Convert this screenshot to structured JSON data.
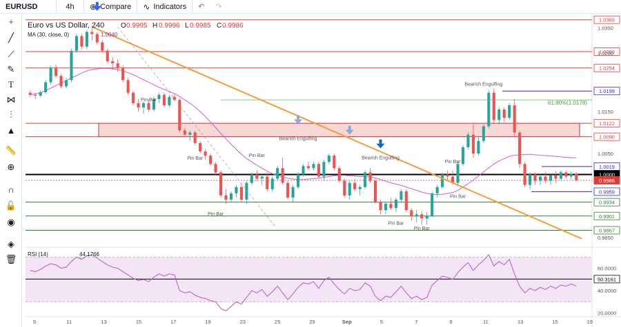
{
  "topbar": {
    "symbol": "EURUSD",
    "interval": "4h",
    "compare_label": "Compare",
    "indicators_label": "Indicators"
  },
  "toolbar": {
    "icons": [
      "crosshair-icon",
      "trend-line-icon",
      "brush-icon",
      "pen-icon",
      "text-icon",
      "pattern-icon",
      "measure-tool-icon",
      "arrow-up-icon",
      "ruler-icon",
      "zoom-icon",
      "magnet-icon",
      "lock-icon",
      "eye-icon",
      "layers-icon",
      "trash-icon"
    ]
  },
  "chart_data": {
    "type": "candlestick",
    "title": "Euro vs US Dollar, 240",
    "ohlc": {
      "o_label": "O",
      "o": "0.9995",
      "h_label": "H",
      "h": "0.9996",
      "l_label": "L",
      "l": "0.9985",
      "c_label": "C",
      "c": "0.9986"
    },
    "ma_legend": {
      "label": "MA (30, close, 0)",
      "value": "1.0040"
    },
    "rsi_legend": {
      "label": "RSI (14)",
      "value": "44.1766"
    },
    "y_axis": {
      "ticks": [
        "1.0350",
        "1.0290",
        "1.0150",
        "1.0050",
        "0.9850"
      ],
      "range": [
        0.983,
        1.038
      ]
    },
    "rsi_axis": {
      "ticks": [
        "60.0000",
        "40.0000",
        "20.0000"
      ],
      "range": [
        18,
        77
      ]
    },
    "x_axis": {
      "ticks": [
        "9",
        "11",
        "13",
        "15",
        "17",
        "19",
        "23",
        "25",
        "29",
        "Sep",
        "5",
        "7",
        "9",
        "11",
        "13",
        "15",
        "19"
      ]
    },
    "levels": [
      {
        "value": 1.0369,
        "label": "1.0369",
        "color": "#e53935",
        "kind": "red"
      },
      {
        "value": 1.0293,
        "label": "1.0293",
        "color": "#e53935",
        "kind": "red"
      },
      {
        "value": 1.0254,
        "label": "1.0254",
        "color": "#e53935",
        "kind": "red"
      },
      {
        "value": 1.0199,
        "label": "1.0199",
        "color": "#2a2ad4",
        "kind": "blue"
      },
      {
        "value": 1.0122,
        "label": "1.0122",
        "color": "#e53935",
        "kind": "red"
      },
      {
        "value": 1.009,
        "label": "1.0090",
        "color": "#e53935",
        "kind": "red"
      },
      {
        "value": 1.0019,
        "label": "1.0019",
        "color": "#2a2ad4",
        "kind": "blue"
      },
      {
        "value": 1.0,
        "label": "1.0000",
        "color": "#000000",
        "kind": "black"
      },
      {
        "value": 0.9986,
        "label": "0.9986",
        "color": "#e53935",
        "kind": "price"
      },
      {
        "value": 0.9959,
        "label": "0.9959",
        "color": "#2a2ad4",
        "kind": "blue"
      },
      {
        "value": 0.9934,
        "label": "0.9934",
        "color": "#2e7d32",
        "kind": "green"
      },
      {
        "value": 0.9901,
        "label": "0.9901",
        "color": "#2e7d32",
        "kind": "green"
      },
      {
        "value": 0.9867,
        "label": "0.9867",
        "color": "#2e7d32",
        "kind": "green"
      }
    ],
    "rsi_level": {
      "value": 50.3161,
      "label": "50.3161"
    },
    "fib_label": "61.80%(1.0178)",
    "fib_level": 1.0178,
    "annotations": [
      {
        "text": "Pin Bar",
        "x": 23,
        "v": 1.0175
      },
      {
        "text": "Bearish Engulfing",
        "x": 52,
        "v": 1.0082
      },
      {
        "text": "Pin Bar",
        "x": 44,
        "v": 1.0042
      },
      {
        "text": "Pin Bar",
        "x": 32,
        "v": 1.0035
      },
      {
        "text": "Pin Bar",
        "x": 36,
        "v": 0.9902
      },
      {
        "text": "Bearish Engulfing",
        "x": 68,
        "v": 1.0036
      },
      {
        "text": "Pin Bar",
        "x": 82,
        "v": 1.0027
      },
      {
        "text": "Pin Bar",
        "x": 83,
        "v": 0.9944
      },
      {
        "text": "Pin Bar",
        "x": 71,
        "v": 0.988
      },
      {
        "text": "Pin Bar",
        "x": 76,
        "v": 0.9868
      },
      {
        "text": "Bearish Engulfing",
        "x": 88,
        "v": 1.0212
      }
    ],
    "arrows": [
      {
        "x": 13,
        "v": 1.0395,
        "color": "#2962ff"
      },
      {
        "x": 52,
        "v": 1.0125,
        "color": "#8fa8d8"
      },
      {
        "x": 62,
        "v": 1.01,
        "color": "#8fa8d8"
      },
      {
        "x": 68,
        "v": 1.0067,
        "color": "#1565c0"
      }
    ],
    "candles": [
      [
        1.0195,
        1.02,
        1.0185,
        1.019
      ],
      [
        1.019,
        1.0195,
        1.018,
        1.0188
      ],
      [
        1.0188,
        1.02,
        1.0185,
        1.0196
      ],
      [
        1.0196,
        1.0225,
        1.0192,
        1.022
      ],
      [
        1.022,
        1.026,
        1.0215,
        1.0255
      ],
      [
        1.0255,
        1.0262,
        1.023,
        1.0235
      ],
      [
        1.0235,
        1.024,
        1.0205,
        1.021
      ],
      [
        1.021,
        1.023,
        1.0205,
        1.0225
      ],
      [
        1.0225,
        1.03,
        1.022,
        1.0295
      ],
      [
        1.0295,
        1.0335,
        1.029,
        1.033
      ],
      [
        1.033,
        1.0335,
        1.03,
        1.0305
      ],
      [
        1.0305,
        1.0345,
        1.03,
        1.034
      ],
      [
        1.034,
        1.0352,
        1.032,
        1.0335
      ],
      [
        1.0335,
        1.034,
        1.031,
        1.0315
      ],
      [
        1.0315,
        1.032,
        1.029,
        1.0295
      ],
      [
        1.0295,
        1.03,
        1.0265,
        1.027
      ],
      [
        1.027,
        1.028,
        1.025,
        1.0265
      ],
      [
        1.0265,
        1.0275,
        1.0245,
        1.0255
      ],
      [
        1.0255,
        1.026,
        1.022,
        1.0225
      ],
      [
        1.0225,
        1.023,
        1.019,
        1.0195
      ],
      [
        1.0195,
        1.02,
        1.0165,
        1.017
      ],
      [
        1.017,
        1.018,
        1.015,
        1.016
      ],
      [
        1.016,
        1.0175,
        1.0145,
        1.017
      ],
      [
        1.017,
        1.018,
        1.015,
        1.0155
      ],
      [
        1.0155,
        1.0185,
        1.015,
        1.018
      ],
      [
        1.018,
        1.0195,
        1.017,
        1.019
      ],
      [
        1.019,
        1.0195,
        1.016,
        1.0165
      ],
      [
        1.0165,
        1.019,
        1.016,
        1.0185
      ],
      [
        1.0185,
        1.0192,
        1.0175,
        1.0178
      ],
      [
        1.0178,
        1.0182,
        1.01,
        1.0105
      ],
      [
        1.0105,
        1.011,
        1.009,
        1.0095
      ],
      [
        1.0095,
        1.0105,
        1.008,
        1.01
      ],
      [
        1.01,
        1.0105,
        1.007,
        1.0075
      ],
      [
        1.0075,
        1.008,
        1.005,
        1.0055
      ],
      [
        1.0055,
        1.006,
        1.0035,
        1.0045
      ],
      [
        1.0045,
        1.005,
        1.002,
        1.0025
      ],
      [
        1.0025,
        1.003,
        1.0,
        1.0005
      ],
      [
        1.0005,
        1.001,
        0.9945,
        0.995
      ],
      [
        0.995,
        0.9965,
        0.993,
        0.994
      ],
      [
        0.994,
        0.996,
        0.9935,
        0.9955
      ],
      [
        0.9955,
        0.9975,
        0.9945,
        0.997
      ],
      [
        0.997,
        0.998,
        0.9935,
        0.994
      ],
      [
        0.994,
        0.9985,
        0.993,
        0.998
      ],
      [
        0.998,
        1.0005,
        0.9975,
        1.0
      ],
      [
        1.0,
        1.001,
        0.9985,
        0.999
      ],
      [
        0.999,
        1.0,
        0.9975,
        0.9995
      ],
      [
        0.9995,
        1.0005,
        0.996,
        0.9965
      ],
      [
        0.9965,
        0.9995,
        0.996,
        0.999
      ],
      [
        0.999,
        1.002,
        0.9985,
        1.0015
      ],
      [
        1.0015,
        1.004,
        0.9975,
        0.998
      ],
      [
        0.998,
        0.9985,
        0.994,
        0.9945
      ],
      [
        0.9945,
        0.9975,
        0.9935,
        0.997
      ],
      [
        0.997,
        1.0005,
        0.9965,
        1.0
      ],
      [
        1.0,
        1.0025,
        0.9995,
        1.002
      ],
      [
        1.002,
        1.003,
        1.001,
        1.0015
      ],
      [
        1.0015,
        1.003,
        1.001,
        1.0025
      ],
      [
        1.0025,
        1.003,
        0.999,
        0.9995
      ],
      [
        0.9995,
        1.0035,
        0.9985,
        1.003
      ],
      [
        1.003,
        1.005,
        1.0025,
        1.0045
      ],
      [
        1.0045,
        1.005,
        1.001,
        1.0015
      ],
      [
        1.0015,
        1.002,
        0.998,
        0.9985
      ],
      [
        0.9985,
        0.999,
        0.9945,
        0.995
      ],
      [
        0.995,
        0.9985,
        0.994,
        0.998
      ],
      [
        0.998,
        0.999,
        0.996,
        0.9965
      ],
      [
        0.9965,
        0.9975,
        0.995,
        0.997
      ],
      [
        0.997,
        1.001,
        0.9965,
        1.0005
      ],
      [
        1.0005,
        1.0015,
        0.998,
        0.9985
      ],
      [
        0.9985,
        0.999,
        0.993,
        0.9935
      ],
      [
        0.9935,
        0.994,
        0.9905,
        0.9915
      ],
      [
        0.9915,
        0.9935,
        0.9905,
        0.993
      ],
      [
        0.993,
        0.9945,
        0.9915,
        0.992
      ],
      [
        0.992,
        0.9945,
        0.991,
        0.994
      ],
      [
        0.994,
        0.9965,
        0.9935,
        0.996
      ],
      [
        0.996,
        0.9965,
        0.991,
        0.9915
      ],
      [
        0.9915,
        0.992,
        0.989,
        0.99
      ],
      [
        0.99,
        0.9915,
        0.9885,
        0.9905
      ],
      [
        0.9905,
        0.9912,
        0.988,
        0.9895
      ],
      [
        0.9895,
        0.991,
        0.988,
        0.9902
      ],
      [
        0.9902,
        0.996,
        0.9898,
        0.9955
      ],
      [
        0.9955,
        0.9975,
        0.9945,
        0.997
      ],
      [
        0.997,
        1.0005,
        0.9965,
        1.0
      ],
      [
        1.0,
        1.001,
        0.9985,
        0.9995
      ],
      [
        0.9995,
        1.001,
        0.9975,
        0.998
      ],
      [
        0.998,
        1.003,
        0.9975,
        1.0025
      ],
      [
        1.0025,
        1.007,
        1.002,
        1.0065
      ],
      [
        1.0065,
        1.01,
        1.006,
        1.0095
      ],
      [
        1.0095,
        1.012,
        1.004,
        1.005
      ],
      [
        1.005,
        1.009,
        1.0045,
        1.008
      ],
      [
        1.008,
        1.012,
        1.0075,
        1.0115
      ],
      [
        1.0115,
        1.02,
        1.011,
        1.0195
      ],
      [
        1.0195,
        1.0205,
        1.012,
        1.013
      ],
      [
        1.013,
        1.016,
        1.012,
        1.0155
      ],
      [
        1.0155,
        1.016,
        1.0125,
        1.0135
      ],
      [
        1.0135,
        1.017,
        1.013,
        1.0165
      ],
      [
        1.0165,
        1.018,
        1.009,
        1.01
      ],
      [
        1.01,
        1.0105,
        1.0015,
        1.0025
      ],
      [
        1.0025,
        1.003,
        0.997,
        0.9975
      ],
      [
        0.9975,
        1.0005,
        0.9965,
        1.0
      ],
      [
        1.0,
        1.0005,
        0.9975,
        0.9985
      ],
      [
        0.9985,
        1.0,
        0.9975,
        0.9995
      ],
      [
        0.9995,
        1.0005,
        0.998,
        0.9985
      ],
      [
        0.9985,
        1.0,
        0.9975,
        0.9998
      ],
      [
        0.9998,
        1.0008,
        0.998,
        0.999
      ],
      [
        0.999,
        1.001,
        0.9985,
        1.0005
      ],
      [
        1.0005,
        1.001,
        0.999,
        0.9995
      ],
      [
        0.9995,
        1.0008,
        0.9988,
        1.0002
      ],
      [
        1.0002,
        1.0006,
        0.9984,
        0.9986
      ]
    ],
    "ma": [
      1.019,
      1.0192,
      1.0195,
      1.02,
      1.0206,
      1.0212,
      1.0218,
      1.0224,
      1.023,
      1.0236,
      1.0242,
      1.0247,
      1.025,
      1.0252,
      1.0253,
      1.0253,
      1.0252,
      1.025,
      1.0247,
      1.0243,
      1.0238,
      1.0232,
      1.0226,
      1.022,
      1.0214,
      1.0208,
      1.0203,
      1.0198,
      1.0193,
      1.0186,
      1.0178,
      1.017,
      1.0161,
      1.015,
      1.0138,
      1.0125,
      1.0112,
      1.0098,
      1.0085,
      1.0072,
      1.006,
      1.0048,
      1.0038,
      1.003,
      1.0022,
      1.0015,
      1.0008,
      1.0002,
      0.9998,
      0.9994,
      0.9991,
      0.9989,
      0.9988,
      0.9988,
      0.9989,
      0.999,
      0.9991,
      0.9993,
      0.9995,
      0.9997,
      0.9998,
      0.9998,
      0.9997,
      0.9996,
      0.9995,
      0.9995,
      0.9994,
      0.9992,
      0.9988,
      0.9984,
      0.998,
      0.9977,
      0.9974,
      0.997,
      0.9966,
      0.9962,
      0.9958,
      0.9955,
      0.9953,
      0.9952,
      0.9953,
      0.9955,
      0.9957,
      0.9962,
      0.997,
      0.9978,
      0.9987,
      0.9996,
      1.0006,
      1.0016,
      1.0025,
      1.0032,
      1.0038,
      1.0043,
      1.0046,
      1.0047,
      1.0048,
      1.0048,
      1.0047,
      1.0046,
      1.0045,
      1.0044,
      1.0043,
      1.0042,
      1.0041,
      1.004,
      1.004
    ],
    "rsi": [
      58,
      57,
      59,
      62,
      64,
      63,
      60,
      61,
      66,
      70,
      68,
      71,
      72,
      69,
      66,
      63,
      61,
      60,
      57,
      54,
      51,
      49,
      50,
      48,
      52,
      55,
      53,
      55,
      54,
      40,
      38,
      39,
      36,
      34,
      33,
      31,
      30,
      24,
      22,
      26,
      30,
      28,
      34,
      40,
      38,
      41,
      35,
      39,
      44,
      38,
      32,
      37,
      43,
      47,
      46,
      48,
      42,
      49,
      52,
      46,
      41,
      37,
      42,
      40,
      41,
      47,
      44,
      35,
      31,
      35,
      34,
      39,
      44,
      38,
      33,
      35,
      32,
      34,
      45,
      49,
      53,
      52,
      50,
      56,
      61,
      65,
      58,
      63,
      67,
      72,
      62,
      66,
      63,
      68,
      55,
      44,
      38,
      42,
      40,
      43,
      41,
      44,
      42,
      45,
      44,
      46,
      44
    ]
  }
}
